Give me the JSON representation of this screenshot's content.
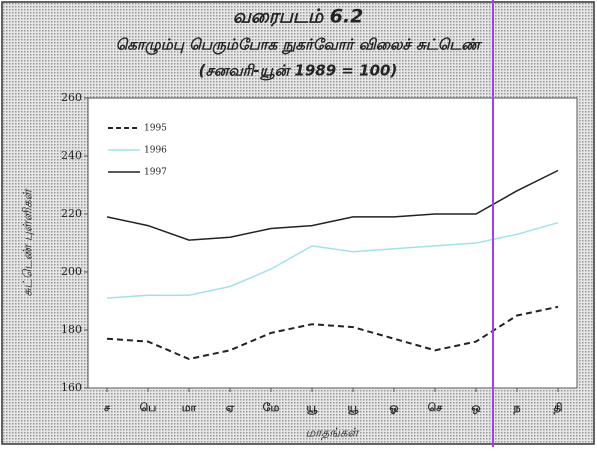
{
  "chart_data": {
    "type": "line",
    "title": "வரைபடம் 6.2",
    "subtitle": "கொழும்பு பெரும்போக நுகர்வோர் விலைச் சுட்டெண்",
    "note": "(சனவரி-யூன் 1989 = 100)",
    "y_label": "சுட்டெண் புள்ளிகள்",
    "x_label": "மாதங்கள்",
    "categories": [
      "ச",
      "பெ",
      "மா",
      "ஏ",
      "மே",
      "யூ",
      "யூ",
      "ஓ",
      "செ",
      "ஒ",
      "ந",
      "தி"
    ],
    "series": [
      {
        "name": "1995",
        "color": "#222222",
        "dash": true,
        "values": [
          177,
          176,
          170,
          173,
          179,
          182,
          181,
          177,
          173,
          176,
          185,
          188
        ]
      },
      {
        "name": "1996",
        "color": "#9fe3ea",
        "dash": false,
        "values": [
          191,
          192,
          192,
          195,
          201,
          209,
          207,
          208,
          209,
          210,
          213,
          217
        ]
      },
      {
        "name": "1997",
        "color": "#222222",
        "dash": false,
        "values": [
          219,
          216,
          211,
          212,
          215,
          216,
          219,
          219,
          220,
          220,
          228,
          235
        ]
      }
    ],
    "ylim": [
      160,
      260
    ],
    "yticks": [
      160,
      180,
      200,
      220,
      240,
      260
    ]
  }
}
